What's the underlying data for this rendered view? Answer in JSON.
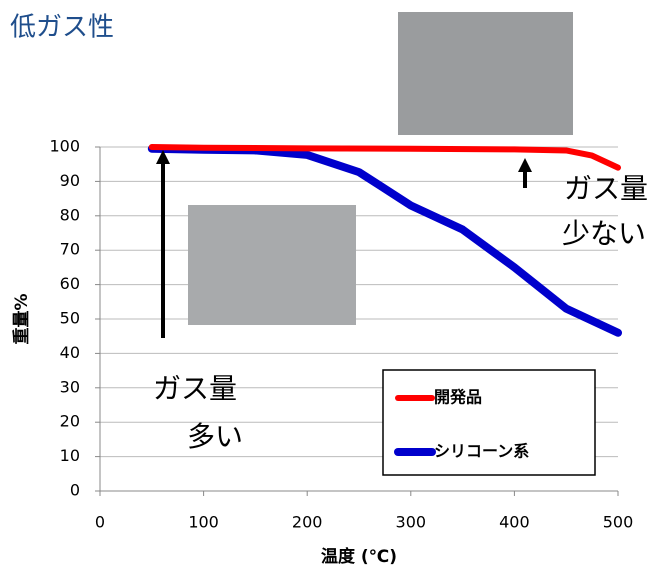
{
  "chart_data": {
    "type": "line",
    "title": "低ガス性",
    "x_label": "温度 (℃)",
    "y_label": "重量%",
    "xlim": [
      0,
      500
    ],
    "xticks": [
      0,
      100,
      200,
      300,
      400,
      500
    ],
    "ylim": [
      0,
      100
    ],
    "yticks": [
      0,
      10,
      20,
      30,
      40,
      50,
      60,
      70,
      80,
      90,
      100
    ],
    "grid": true,
    "legend": "lower right",
    "series": [
      {
        "name": "開発品",
        "color": "#ff0000",
        "x": [
          50,
          100,
          200,
          300,
          400,
          450,
          475,
          500
        ],
        "values": [
          100,
          99.8,
          99.6,
          99.5,
          99.3,
          99,
          97.5,
          94
        ]
      },
      {
        "name": "シリコーン系",
        "color": "#0000cc",
        "x": [
          50,
          100,
          150,
          200,
          250,
          300,
          350,
          400,
          450,
          500
        ],
        "values": [
          99.5,
          99.2,
          99,
          97.7,
          92.7,
          83,
          76,
          65,
          53,
          46
        ]
      }
    ],
    "annotations": [
      [
        "ガス量",
        "少ない"
      ],
      [
        "ガス量",
        "多い"
      ]
    ]
  }
}
